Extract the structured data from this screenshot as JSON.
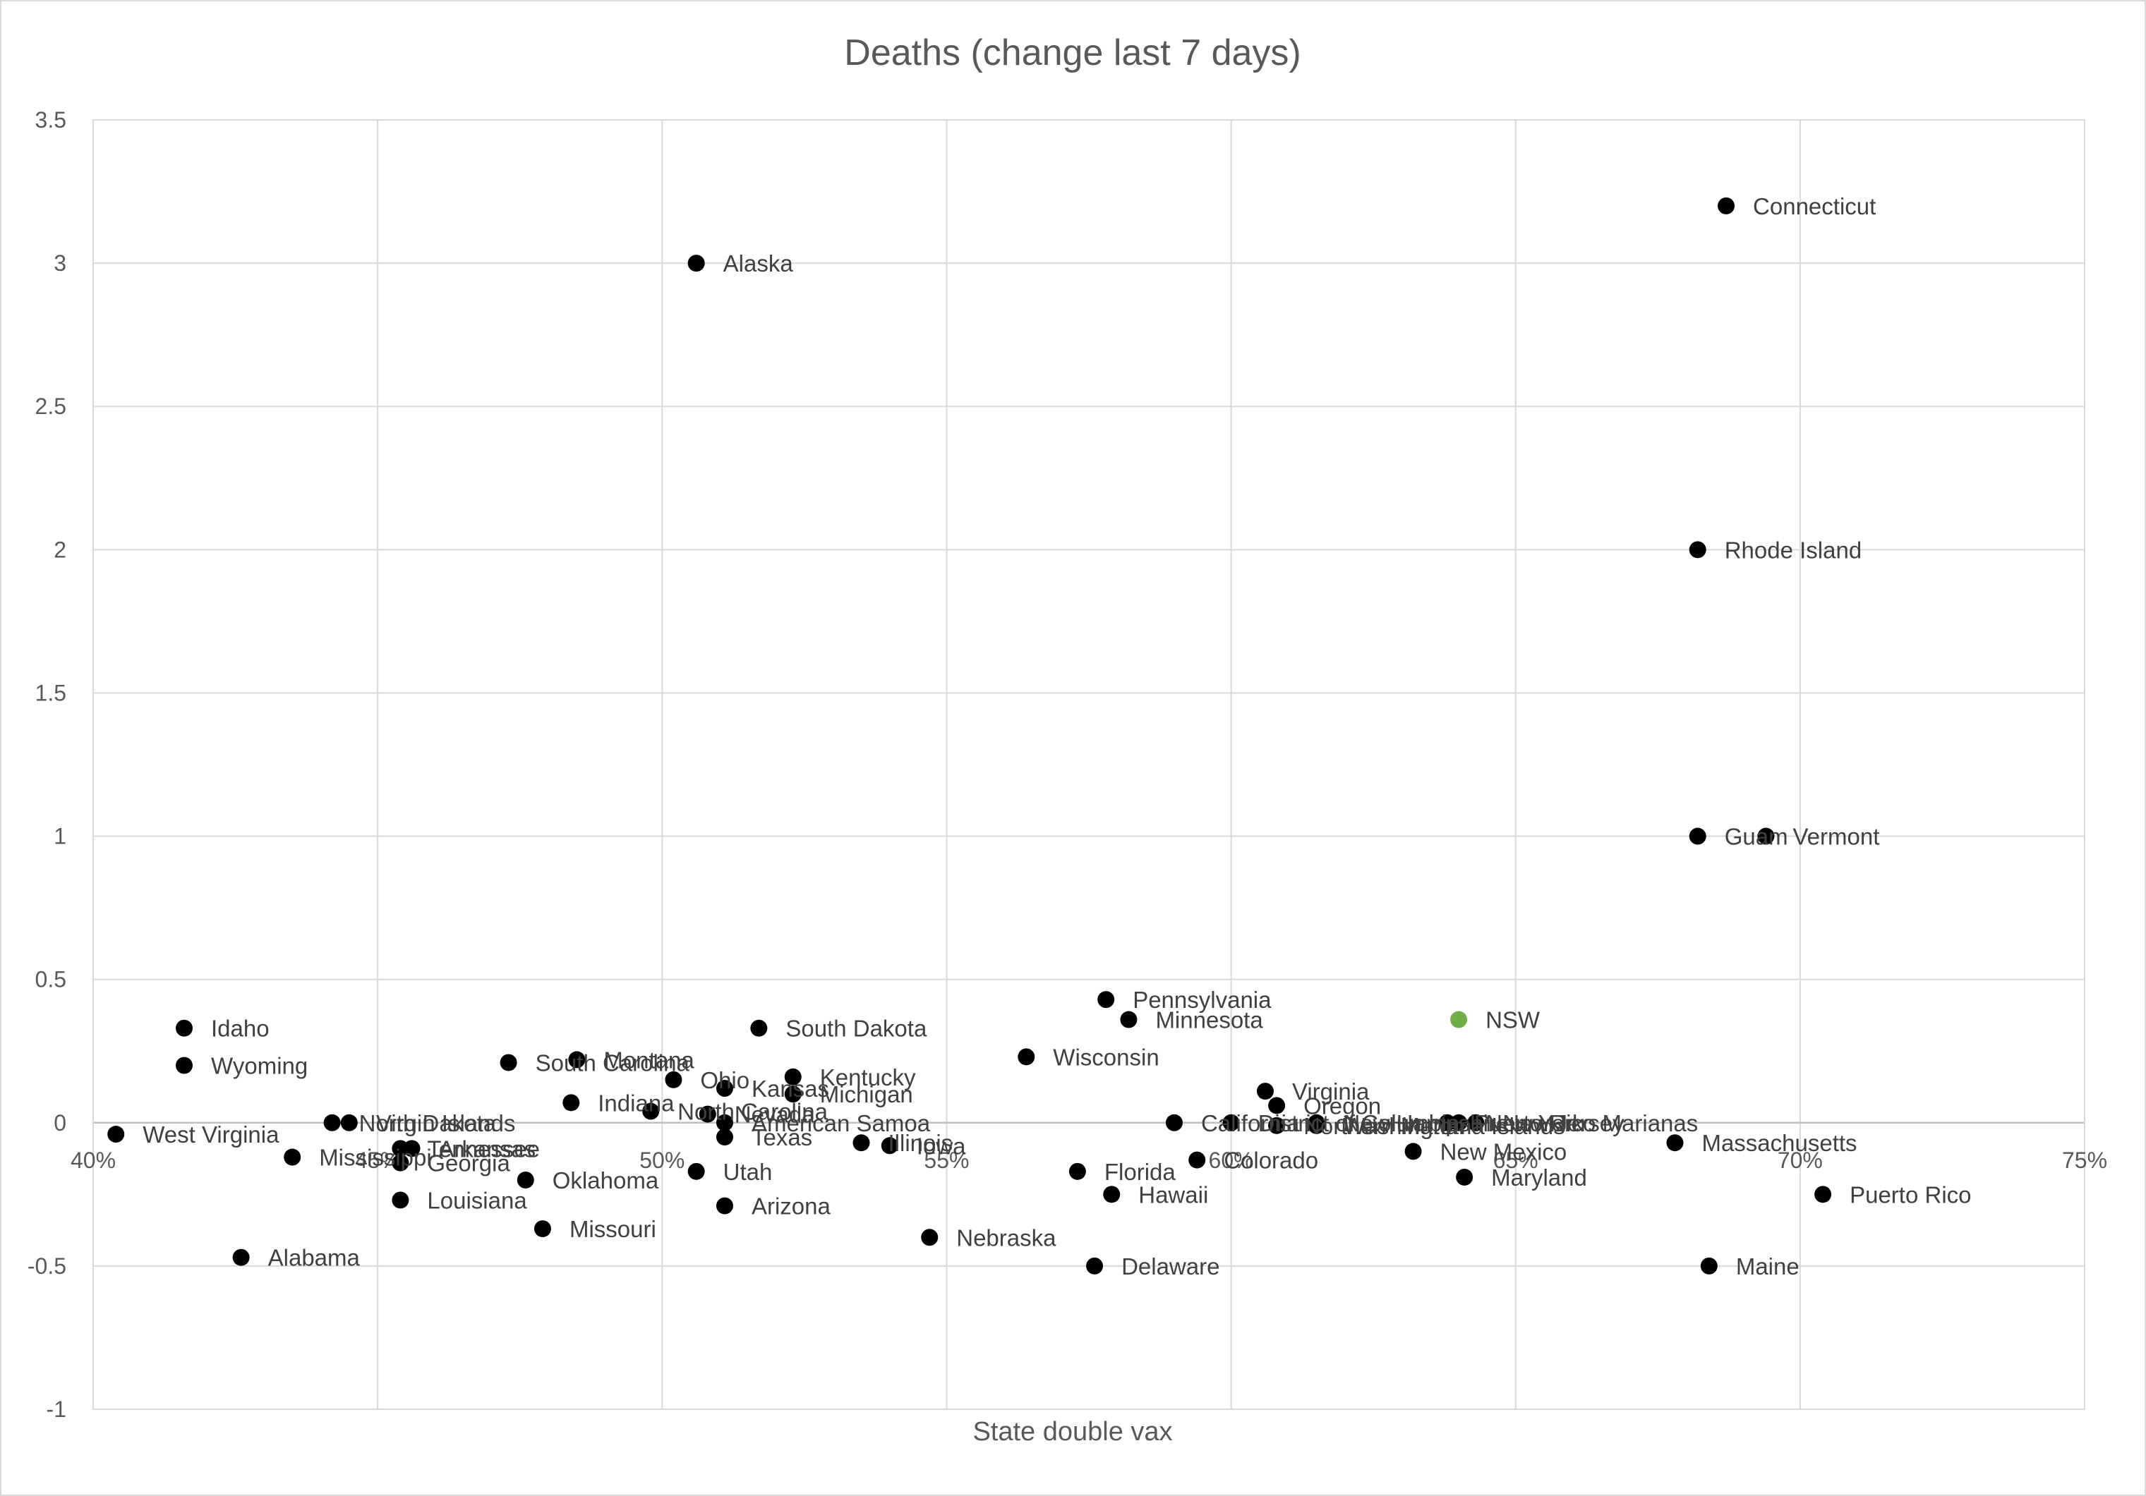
{
  "chart_data": {
    "type": "scatter",
    "title": "Deaths (change last 7 days)",
    "xlabel": "State double vax",
    "ylabel": "",
    "xlim": [
      0.4,
      0.75
    ],
    "ylim": [
      -1,
      3.5
    ],
    "x_ticks": [
      {
        "value": 0.4,
        "label": "40%"
      },
      {
        "value": 0.45,
        "label": "45%"
      },
      {
        "value": 0.5,
        "label": "50%"
      },
      {
        "value": 0.55,
        "label": "55%"
      },
      {
        "value": 0.6,
        "label": "60%"
      },
      {
        "value": 0.65,
        "label": "65%"
      },
      {
        "value": 0.7,
        "label": "70%"
      },
      {
        "value": 0.75,
        "label": "75%"
      }
    ],
    "y_ticks": [
      {
        "value": -1,
        "label": "-1"
      },
      {
        "value": -0.5,
        "label": "-0.5"
      },
      {
        "value": 0,
        "label": "0"
      },
      {
        "value": 0.5,
        "label": "0.5"
      },
      {
        "value": 1,
        "label": "1"
      },
      {
        "value": 1.5,
        "label": "1.5"
      },
      {
        "value": 2,
        "label": "2"
      },
      {
        "value": 2.5,
        "label": "2.5"
      },
      {
        "value": 3,
        "label": "3"
      },
      {
        "value": 3.5,
        "label": "3.5"
      }
    ],
    "grid": true,
    "legend": "none",
    "colors": {
      "default": "#000000",
      "highlight": "#70ad47"
    },
    "points": [
      {
        "label": "West Virginia",
        "x": 0.404,
        "y": -0.04
      },
      {
        "label": "Idaho",
        "x": 0.416,
        "y": 0.33
      },
      {
        "label": "Wyoming",
        "x": 0.416,
        "y": 0.2
      },
      {
        "label": "Alabama",
        "x": 0.426,
        "y": -0.47
      },
      {
        "label": "Mississippi",
        "x": 0.435,
        "y": -0.12
      },
      {
        "label": "North Dakota",
        "x": 0.442,
        "y": 0.0
      },
      {
        "label": "Virgin Islands",
        "x": 0.445,
        "y": 0.0
      },
      {
        "label": "Tennessee",
        "x": 0.454,
        "y": -0.09
      },
      {
        "label": "Arkansas",
        "x": 0.456,
        "y": -0.09
      },
      {
        "label": "Georgia",
        "x": 0.454,
        "y": -0.14
      },
      {
        "label": "Louisiana",
        "x": 0.454,
        "y": -0.27
      },
      {
        "label": "Oklahoma",
        "x": 0.476,
        "y": -0.2
      },
      {
        "label": "Missouri",
        "x": 0.479,
        "y": -0.37
      },
      {
        "label": "South Carolina",
        "x": 0.473,
        "y": 0.21
      },
      {
        "label": "Montana",
        "x": 0.485,
        "y": 0.22
      },
      {
        "label": "Indiana",
        "x": 0.484,
        "y": 0.07
      },
      {
        "label": "North Carolina",
        "x": 0.498,
        "y": 0.04
      },
      {
        "label": "Ohio",
        "x": 0.502,
        "y": 0.15
      },
      {
        "label": "Utah",
        "x": 0.506,
        "y": -0.17
      },
      {
        "label": "Alaska",
        "x": 0.506,
        "y": 3.0
      },
      {
        "label": "Nevada",
        "x": 0.508,
        "y": 0.03
      },
      {
        "label": "Kansas",
        "x": 0.511,
        "y": 0.12
      },
      {
        "label": "American Samoa",
        "x": 0.511,
        "y": 0.0
      },
      {
        "label": "Texas",
        "x": 0.511,
        "y": -0.05
      },
      {
        "label": "Arizona",
        "x": 0.511,
        "y": -0.29
      },
      {
        "label": "South Dakota",
        "x": 0.517,
        "y": 0.33
      },
      {
        "label": "Kentucky",
        "x": 0.523,
        "y": 0.16
      },
      {
        "label": "Michigan",
        "x": 0.523,
        "y": 0.1
      },
      {
        "label": "Illinois",
        "x": 0.535,
        "y": -0.07
      },
      {
        "label": "Iowa",
        "x": 0.54,
        "y": -0.08
      },
      {
        "label": "Nebraska",
        "x": 0.547,
        "y": -0.4
      },
      {
        "label": "Wisconsin",
        "x": 0.564,
        "y": 0.23
      },
      {
        "label": "Florida",
        "x": 0.573,
        "y": -0.17
      },
      {
        "label": "Delaware",
        "x": 0.576,
        "y": -0.5
      },
      {
        "label": "Pennsylvania",
        "x": 0.578,
        "y": 0.43
      },
      {
        "label": "Hawaii",
        "x": 0.579,
        "y": -0.25
      },
      {
        "label": "Minnesota",
        "x": 0.582,
        "y": 0.36
      },
      {
        "label": "California",
        "x": 0.59,
        "y": 0.0
      },
      {
        "label": "Colorado",
        "x": 0.594,
        "y": -0.13
      },
      {
        "label": "District of Columbia",
        "x": 0.6,
        "y": 0.0
      },
      {
        "label": "Virginia",
        "x": 0.606,
        "y": 0.11
      },
      {
        "label": "Oregon",
        "x": 0.608,
        "y": 0.06
      },
      {
        "label": "Northern Mariana Islands",
        "x": 0.608,
        "y": -0.01
      },
      {
        "label": "New Hampshire",
        "x": 0.615,
        "y": 0.0
      },
      {
        "label": "Washington",
        "x": 0.615,
        "y": -0.01
      },
      {
        "label": "New Mexico",
        "x": 0.632,
        "y": -0.1
      },
      {
        "label": "Puerto Rico Marianas",
        "x": 0.638,
        "y": 0.0
      },
      {
        "label": "New York",
        "x": 0.64,
        "y": 0.0
      },
      {
        "label": "New Jersey",
        "x": 0.643,
        "y": 0.0
      },
      {
        "label": "NSW",
        "x": 0.64,
        "y": 0.36,
        "highlight": true
      },
      {
        "label": "Maryland",
        "x": 0.641,
        "y": -0.19
      },
      {
        "label": "Massachusetts",
        "x": 0.678,
        "y": -0.07
      },
      {
        "label": "Rhode Island",
        "x": 0.682,
        "y": 2.0
      },
      {
        "label": "Guam",
        "x": 0.682,
        "y": 1.0
      },
      {
        "label": "Maine",
        "x": 0.684,
        "y": -0.5
      },
      {
        "label": "Connecticut",
        "x": 0.687,
        "y": 3.2
      },
      {
        "label": "Vermont",
        "x": 0.694,
        "y": 1.0
      },
      {
        "label": "Puerto Rico",
        "x": 0.704,
        "y": -0.25
      }
    ]
  }
}
